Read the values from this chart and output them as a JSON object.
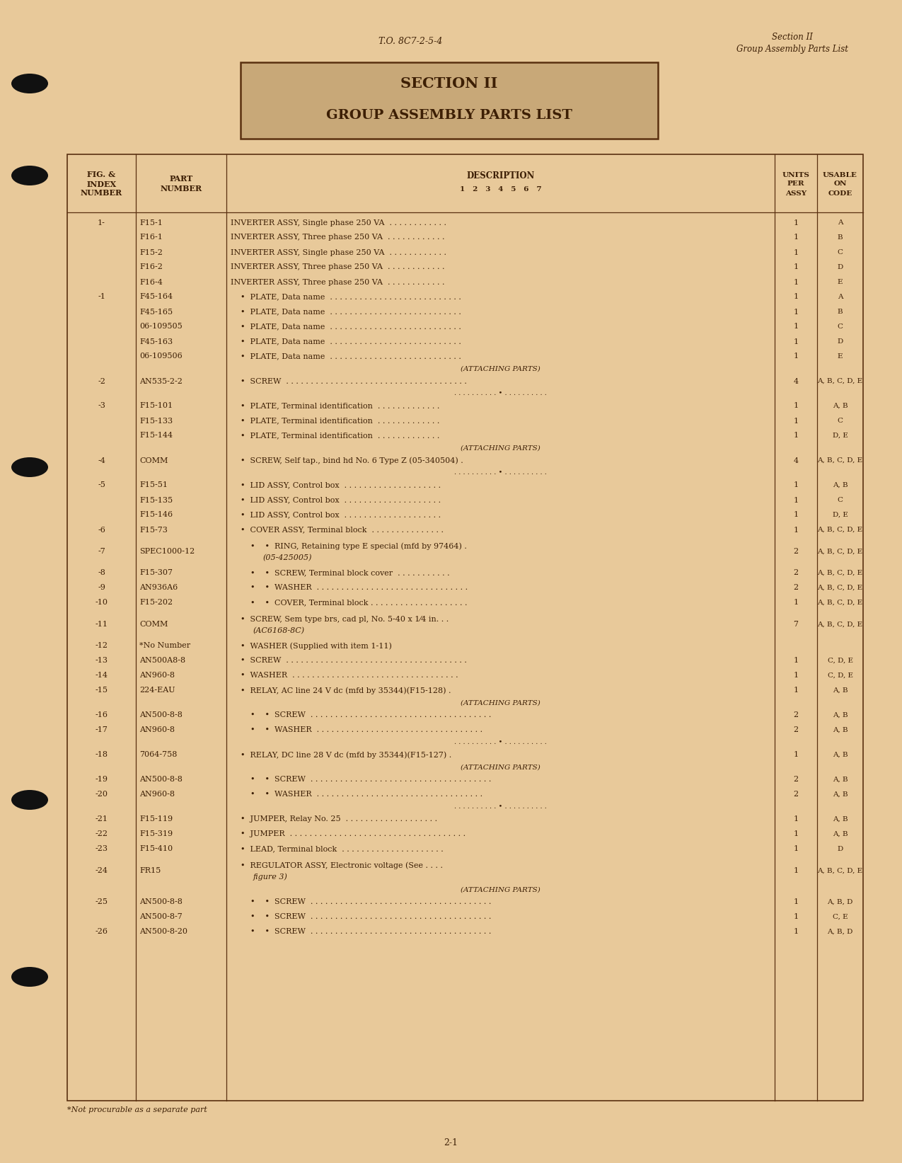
{
  "bg_color": "#e8c99a",
  "paper_color": "#ecdbb8",
  "text_color": "#3d1f05",
  "border_color": "#5a3010",
  "page_header_left": "T.O. 8C7-2-5-4",
  "page_header_right_line1": "Section II",
  "page_header_right_line2": "Group Assembly Parts List",
  "section_title_line1": "SECTION II",
  "section_title_line2": "GROUP ASSEMBLY PARTS LIST",
  "footer_note": "*Not procurable as a separate part",
  "footer_page": "2-1",
  "rows": [
    {
      "fig": "1-",
      "part": "F15-1",
      "indent": 0,
      "desc": "INVERTER ASSY, Single phase 250 VA  . . . . . . . . . . . .",
      "units": "1",
      "code": "A"
    },
    {
      "fig": "",
      "part": "F16-1",
      "indent": 0,
      "desc": "INVERTER ASSY, Three phase 250 VA  . . . . . . . . . . . .",
      "units": "1",
      "code": "B"
    },
    {
      "fig": "",
      "part": "F15-2",
      "indent": 0,
      "desc": "INVERTER ASSY, Single phase 250 VA  . . . . . . . . . . . .",
      "units": "1",
      "code": "C"
    },
    {
      "fig": "",
      "part": "F16-2",
      "indent": 0,
      "desc": "INVERTER ASSY, Three phase 250 VA  . . . . . . . . . . . .",
      "units": "1",
      "code": "D"
    },
    {
      "fig": "",
      "part": "F16-4",
      "indent": 0,
      "desc": "INVERTER ASSY, Three phase 250 VA  . . . . . . . . . . . .",
      "units": "1",
      "code": "E"
    },
    {
      "fig": "-1",
      "part": "F45-164",
      "indent": 1,
      "desc": "PLATE, Data name  . . . . . . . . . . . . . . . . . . . . . . . . . . .",
      "units": "1",
      "code": "A"
    },
    {
      "fig": "",
      "part": "F45-165",
      "indent": 1,
      "desc": "PLATE, Data name  . . . . . . . . . . . . . . . . . . . . . . . . . . .",
      "units": "1",
      "code": "B"
    },
    {
      "fig": "",
      "part": "06-109505",
      "indent": 1,
      "desc": "PLATE, Data name  . . . . . . . . . . . . . . . . . . . . . . . . . . .",
      "units": "1",
      "code": "C"
    },
    {
      "fig": "",
      "part": "F45-163",
      "indent": 1,
      "desc": "PLATE, Data name  . . . . . . . . . . . . . . . . . . . . . . . . . . .",
      "units": "1",
      "code": "D"
    },
    {
      "fig": "",
      "part": "06-109506",
      "indent": 1,
      "desc": "PLATE, Data name  . . . . . . . . . . . . . . . . . . . . . . . . . . .",
      "units": "1",
      "code": "E"
    },
    {
      "fig": "",
      "part": "",
      "indent": 0,
      "desc": "(ATTACHING PARTS)",
      "units": "",
      "code": "",
      "type": "attaching"
    },
    {
      "fig": "-2",
      "part": "AN535-2-2",
      "indent": 1,
      "desc": "SCREW  . . . . . . . . . . . . . . . . . . . . . . . . . . . . . . . . . . . . .",
      "units": "4",
      "code": "A, B, C, D, E"
    },
    {
      "fig": "",
      "part": "",
      "indent": 0,
      "desc": "- - - - - - - - - - - * - - - - - - - - - -",
      "units": "",
      "code": "",
      "type": "separator"
    },
    {
      "fig": "-3",
      "part": "F15-101",
      "indent": 1,
      "desc": "PLATE, Terminal identification  . . . . . . . . . . . . .",
      "units": "1",
      "code": "A, B"
    },
    {
      "fig": "",
      "part": "F15-133",
      "indent": 1,
      "desc": "PLATE, Terminal identification  . . . . . . . . . . . . .",
      "units": "1",
      "code": "C"
    },
    {
      "fig": "",
      "part": "F15-144",
      "indent": 1,
      "desc": "PLATE, Terminal identification  . . . . . . . . . . . . .",
      "units": "1",
      "code": "D, E"
    },
    {
      "fig": "",
      "part": "",
      "indent": 0,
      "desc": "(ATTACHING PARTS)",
      "units": "",
      "code": "",
      "type": "attaching"
    },
    {
      "fig": "-4",
      "part": "COMM",
      "indent": 1,
      "desc": "SCREW, Self tap., bind hd No. 6 Type Z (05-340504) .",
      "units": "4",
      "code": "A, B, C, D, E"
    },
    {
      "fig": "",
      "part": "",
      "indent": 0,
      "desc": "- - - - - - - - - - - * - - - - - - - - - -",
      "units": "",
      "code": "",
      "type": "separator"
    },
    {
      "fig": "-5",
      "part": "F15-51",
      "indent": 1,
      "desc": "LID ASSY, Control box  . . . . . . . . . . . . . . . . . . . .",
      "units": "1",
      "code": "A, B"
    },
    {
      "fig": "",
      "part": "F15-135",
      "indent": 1,
      "desc": "LID ASSY, Control box  . . . . . . . . . . . . . . . . . . . .",
      "units": "1",
      "code": "C"
    },
    {
      "fig": "",
      "part": "F15-146",
      "indent": 1,
      "desc": "LID ASSY, Control box  . . . . . . . . . . . . . . . . . . . .",
      "units": "1",
      "code": "D, E"
    },
    {
      "fig": "-6",
      "part": "F15-73",
      "indent": 1,
      "desc": "COVER ASSY, Terminal block  . . . . . . . . . . . . . . .",
      "units": "1",
      "code": "A, B, C, D, E"
    },
    {
      "fig": "-7",
      "part": "SPEC1000-12",
      "indent": 2,
      "desc": "RING, Retaining type E special (mfd by 97464) .",
      "units": "2",
      "code": "A, B, C, D, E",
      "desc2": "(05-425005)"
    },
    {
      "fig": "-8",
      "part": "F15-307",
      "indent": 2,
      "desc": "SCREW, Terminal block cover  . . . . . . . . . . .",
      "units": "2",
      "code": "A, B, C, D, E"
    },
    {
      "fig": "-9",
      "part": "AN936A6",
      "indent": 2,
      "desc": "WASHER  . . . . . . . . . . . . . . . . . . . . . . . . . . . . . . .",
      "units": "2",
      "code": "A, B, C, D, E"
    },
    {
      "fig": "-10",
      "part": "F15-202",
      "indent": 2,
      "desc": "COVER, Terminal block . . . . . . . . . . . . . . . . . . . .",
      "units": "1",
      "code": "A, B, C, D, E"
    },
    {
      "fig": "-11",
      "part": "COMM",
      "indent": 1,
      "desc": "SCREW, Sem type brs, cad pl, No. 5-40 x 1⁄4 in. . .",
      "units": "7",
      "code": "A, B, C, D, E",
      "desc2": "(AC6168-8C)"
    },
    {
      "fig": "-12",
      "part": "*No Number",
      "indent": 1,
      "desc": "WASHER (Supplied with item 1-11)",
      "units": "",
      "code": ""
    },
    {
      "fig": "-13",
      "part": "AN500A8-8",
      "indent": 1,
      "desc": "SCREW  . . . . . . . . . . . . . . . . . . . . . . . . . . . . . . . . . . . . .",
      "units": "1",
      "code": "C, D, E"
    },
    {
      "fig": "-14",
      "part": "AN960-8",
      "indent": 1,
      "desc": "WASHER  . . . . . . . . . . . . . . . . . . . . . . . . . . . . . . . . . .",
      "units": "1",
      "code": "C, D, E"
    },
    {
      "fig": "-15",
      "part": "224-EAU",
      "indent": 1,
      "desc": "RELAY, AC line 24 V dc (mfd by 35344)(F15-128) .",
      "units": "1",
      "code": "A, B"
    },
    {
      "fig": "",
      "part": "",
      "indent": 0,
      "desc": "(ATTACHING PARTS)",
      "units": "",
      "code": "",
      "type": "attaching"
    },
    {
      "fig": "-16",
      "part": "AN500-8-8",
      "indent": 2,
      "desc": "SCREW  . . . . . . . . . . . . . . . . . . . . . . . . . . . . . . . . . . . . .",
      "units": "2",
      "code": "A, B"
    },
    {
      "fig": "-17",
      "part": "AN960-8",
      "indent": 2,
      "desc": "WASHER  . . . . . . . . . . . . . . . . . . . . . . . . . . . . . . . . . .",
      "units": "2",
      "code": "A, B"
    },
    {
      "fig": "",
      "part": "",
      "indent": 0,
      "desc": "- - - - - - - - - - - * - - - - - - - - - -",
      "units": "",
      "code": "",
      "type": "separator"
    },
    {
      "fig": "-18",
      "part": "7064-758",
      "indent": 1,
      "desc": "RELAY, DC line 28 V dc (mfd by 35344)(F15-127) .",
      "units": "1",
      "code": "A, B"
    },
    {
      "fig": "",
      "part": "",
      "indent": 0,
      "desc": "(ATTACHING PARTS)",
      "units": "",
      "code": "",
      "type": "attaching"
    },
    {
      "fig": "-19",
      "part": "AN500-8-8",
      "indent": 2,
      "desc": "SCREW  . . . . . . . . . . . . . . . . . . . . . . . . . . . . . . . . . . . . .",
      "units": "2",
      "code": "A, B"
    },
    {
      "fig": "-20",
      "part": "AN960-8",
      "indent": 2,
      "desc": "WASHER  . . . . . . . . . . . . . . . . . . . . . . . . . . . . . . . . . .",
      "units": "2",
      "code": "A, B"
    },
    {
      "fig": "",
      "part": "",
      "indent": 0,
      "desc": "- - - - - - - - - - - * - - - - - - - - - -",
      "units": "",
      "code": "",
      "type": "separator"
    },
    {
      "fig": "-21",
      "part": "F15-119",
      "indent": 1,
      "desc": "JUMPER, Relay No. 25  . . . . . . . . . . . . . . . . . . .",
      "units": "1",
      "code": "A, B"
    },
    {
      "fig": "-22",
      "part": "F15-319",
      "indent": 1,
      "desc": "JUMPER  . . . . . . . . . . . . . . . . . . . . . . . . . . . . . . . . . . . .",
      "units": "1",
      "code": "A, B"
    },
    {
      "fig": "-23",
      "part": "F15-410",
      "indent": 1,
      "desc": "LEAD, Terminal block  . . . . . . . . . . . . . . . . . . . . .",
      "units": "1",
      "code": "D"
    },
    {
      "fig": "-24",
      "part": "FR15",
      "indent": 1,
      "desc": "REGULATOR ASSY, Electronic voltage (See . . . .",
      "units": "1",
      "code": "A, B, C, D, E",
      "desc2": "figure 3)"
    },
    {
      "fig": "",
      "part": "",
      "indent": 0,
      "desc": "(ATTACHING PARTS)",
      "units": "",
      "code": "",
      "type": "attaching"
    },
    {
      "fig": "-25",
      "part": "AN500-8-8",
      "indent": 2,
      "desc": "SCREW  . . . . . . . . . . . . . . . . . . . . . . . . . . . . . . . . . . . . .",
      "units": "1",
      "code": "A, B, D"
    },
    {
      "fig": "",
      "part": "AN500-8-7",
      "indent": 2,
      "desc": "SCREW  . . . . . . . . . . . . . . . . . . . . . . . . . . . . . . . . . . . . .",
      "units": "1",
      "code": "C, E"
    },
    {
      "fig": "-26",
      "part": "AN500-8-20",
      "indent": 2,
      "desc": "SCREW  . . . . . . . . . . . . . . . . . . . . . . . . . . . . . . . . . . . . .",
      "units": "1",
      "code": "A, B, D"
    }
  ]
}
